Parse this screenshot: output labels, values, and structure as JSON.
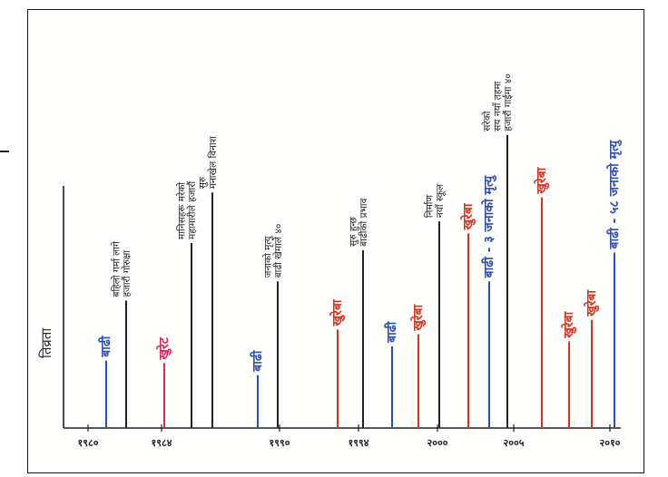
{
  "timeline": {
    "y_axis_label": "तिव्रता",
    "x_ticks": [
      "१९८०",
      "१९८४",
      "१९९०",
      "१९९४",
      "२०००",
      "२००५",
      "२०१०"
    ],
    "events": [
      {
        "label": "बाढी",
        "category": "flood",
        "color": "#2f4fb0",
        "intensity": 0.28
      },
      {
        "label": "हजारौं गोरुक्षा बहिलो गर्मा लागे",
        "category": "event",
        "color": "#222222",
        "intensity": 0.53
      },
      {
        "label": "खुरेट",
        "category": "drought",
        "color": "#d42a5a",
        "intensity": 0.27
      },
      {
        "label": "महामारीले हजारौं मानिसहरू मरेको",
        "category": "event",
        "color": "#222222",
        "intensity": 0.77
      },
      {
        "label": "मनाखेल विनाश सुरु",
        "category": "event",
        "color": "#222222",
        "intensity": 0.98
      },
      {
        "label": "बाढी",
        "category": "flood",
        "color": "#2f4fb0",
        "intensity": 0.22
      },
      {
        "label": "बाढी खेमाले ४० जनाको मृत्यु",
        "category": "event",
        "color": "#222222",
        "intensity": 0.61
      },
      {
        "label": "खुरेबा",
        "category": "drought",
        "color": "#d8321e",
        "intensity": 0.41
      },
      {
        "label": "बाढीको प्रभाव सुरु हुन्छ",
        "category": "event",
        "color": "#222222",
        "intensity": 0.74
      },
      {
        "label": "बाढी",
        "category": "flood",
        "color": "#2f4fb0",
        "intensity": 0.34
      },
      {
        "label": "खुरेबा",
        "category": "drought",
        "color": "#d8321e",
        "intensity": 0.39
      },
      {
        "label": "नयाँ स्कूल निर्माण",
        "category": "event",
        "color": "#222222",
        "intensity": 0.86
      },
      {
        "label": "खुरेबा",
        "category": "drought",
        "color": "#d8321e",
        "intensity": 0.81
      },
      {
        "label": "बाढी - ३ जनाको मृत्यु",
        "category": "flood",
        "color": "#2f4fb0",
        "intensity": 0.61
      },
      {
        "label": "हजारौं गाईमा ४० सय नयाँ तहमा सरेको",
        "category": "event",
        "color": "#222222",
        "intensity": 1.22
      },
      {
        "label": "खुरेबा",
        "category": "drought",
        "color": "#d8321e",
        "intensity": 0.96
      },
      {
        "label": "खुरेबा",
        "category": "drought",
        "color": "#d8321e",
        "intensity": 0.36
      },
      {
        "label": "खुरेबा",
        "category": "drought",
        "color": "#d8321e",
        "intensity": 0.45
      },
      {
        "label": "बाढी - ५८ जनाको मृत्यु",
        "category": "flood",
        "color": "#2f4fb0",
        "intensity": 0.73
      }
    ]
  }
}
